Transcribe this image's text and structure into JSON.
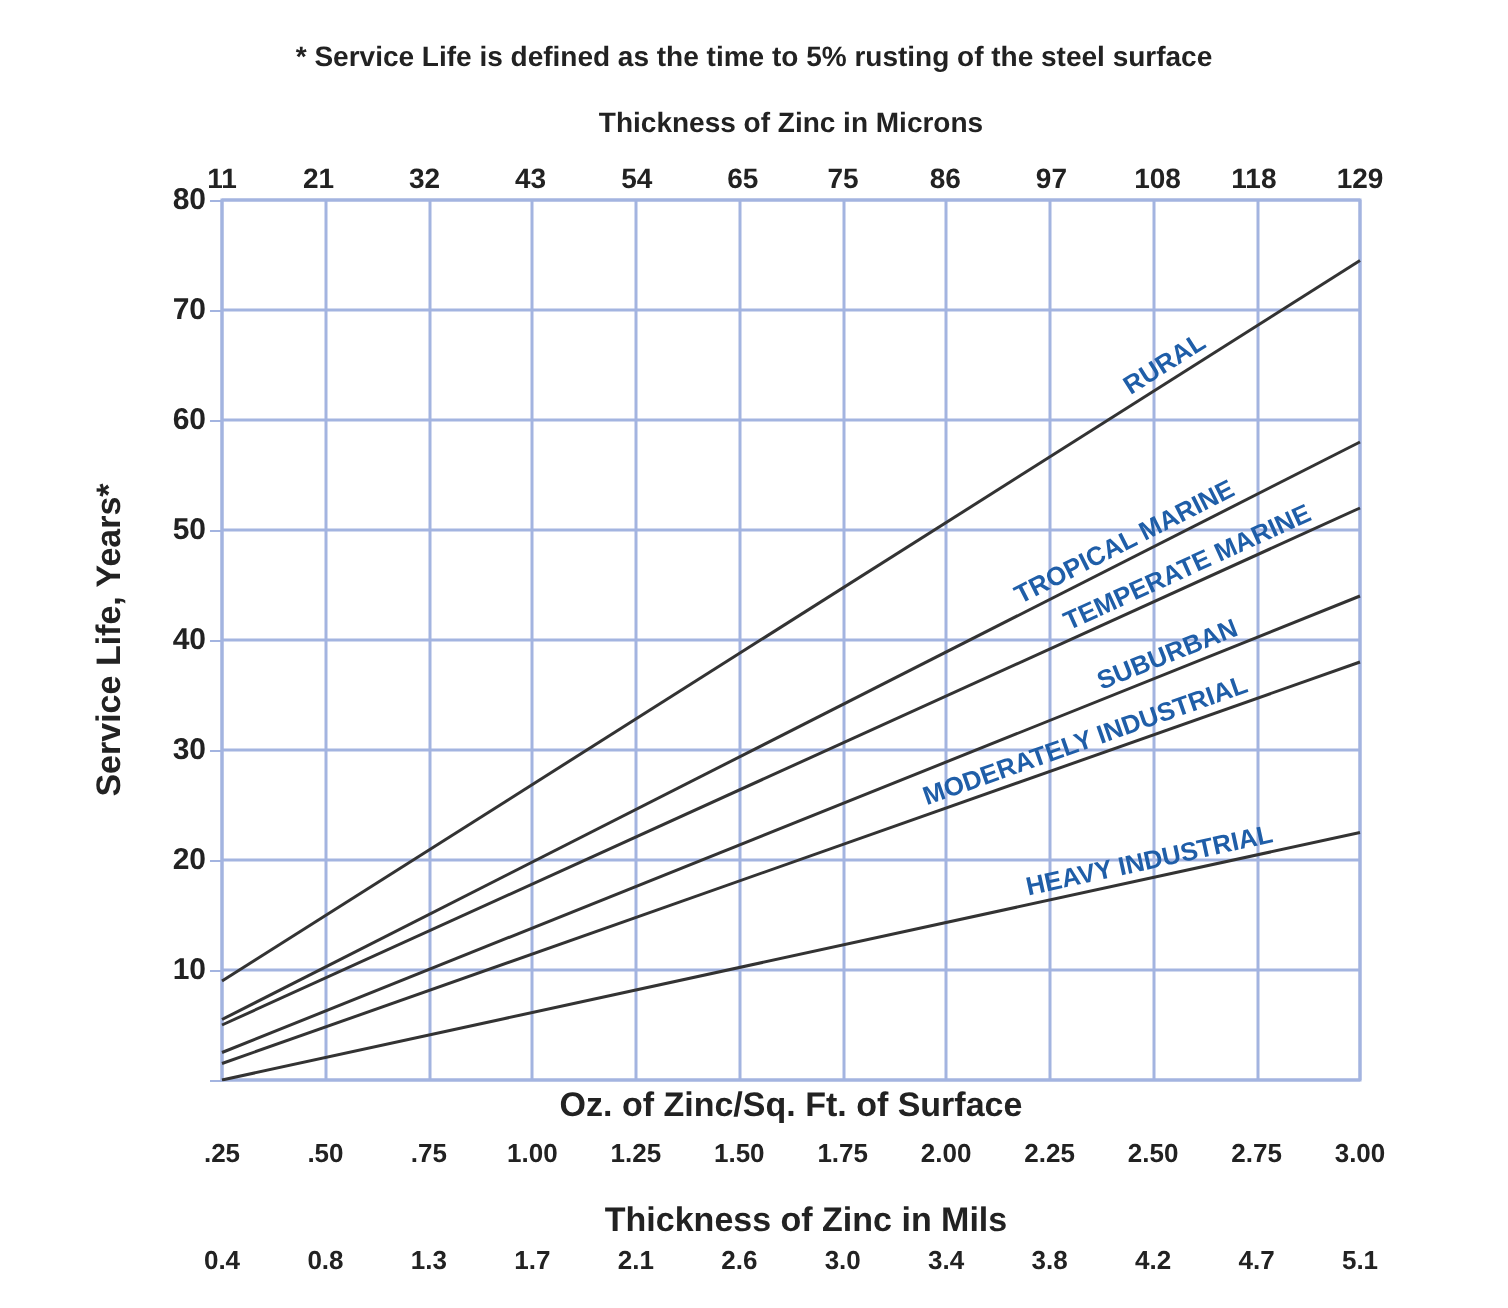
{
  "chart_data": {
    "type": "line",
    "title": "* Service Life is defined as the time to 5% rusting of the steel surface",
    "xlabel": "Oz. of Zinc/Sq. Ft. of Surface",
    "ylabel": "Service Life, Years*",
    "x2label": "Thickness of Zinc in Microns",
    "annotations": [
      "Thickness of Zinc in Mils",
      "0.4",
      "0.8",
      "1.3",
      "1.7",
      "2.1",
      "2.6",
      "3.0",
      "3.4",
      "3.8",
      "4.2",
      "4.7",
      "5.1"
    ],
    "x": [
      0.25,
      3.0
    ],
    "series": [
      {
        "name": "RURAL",
        "color": "#333333",
        "values": [
          9,
          74.5
        ]
      },
      {
        "name": "TROPICAL MARINE",
        "color": "#333333",
        "values": [
          5.5,
          58
        ]
      },
      {
        "name": "TEMPERATE MARINE",
        "color": "#333333",
        "values": [
          5,
          52
        ]
      },
      {
        "name": "SUBURBAN",
        "color": "#333333",
        "values": [
          2.5,
          44
        ]
      },
      {
        "name": "MODERATELY INDUSTRIAL",
        "color": "#333333",
        "values": [
          1.5,
          38
        ]
      },
      {
        "name": "HEAVY INDUSTRIAL",
        "color": "#333333",
        "values": [
          0,
          22.5
        ]
      }
    ],
    "xlim": [
      0.25,
      3.0
    ],
    "xticks": [
      {
        "value": 0.25,
        "label": ".25"
      },
      {
        "value": 0.5,
        "label": ".50"
      },
      {
        "value": 0.75,
        "label": ".75"
      },
      {
        "value": 1,
        "label": "1.00"
      },
      {
        "value": 1.25,
        "label": "1.25"
      },
      {
        "value": 1.5,
        "label": "1.50"
      },
      {
        "value": 1.75,
        "label": "1.75"
      },
      {
        "value": 2,
        "label": "2.00"
      },
      {
        "value": 2.25,
        "label": "2.25"
      },
      {
        "value": 2.5,
        "label": "2.50"
      },
      {
        "value": 2.75,
        "label": "2.75"
      },
      {
        "value": 3,
        "label": "3.00"
      }
    ],
    "x2lim": [
      11,
      129
    ],
    "x2ticks": [
      11,
      21,
      32,
      43,
      54,
      65,
      {
        "value": 75.4,
        "label": "75"
      },
      86,
      97,
      108,
      118,
      129
    ],
    "ylim": [
      0,
      80
    ],
    "yticks": [
      {
        "value": 0,
        "label": null
      },
      10,
      20,
      30,
      40,
      50,
      60,
      70,
      80
    ],
    "grid": true,
    "marker": "none",
    "line_style": "solid"
  }
}
